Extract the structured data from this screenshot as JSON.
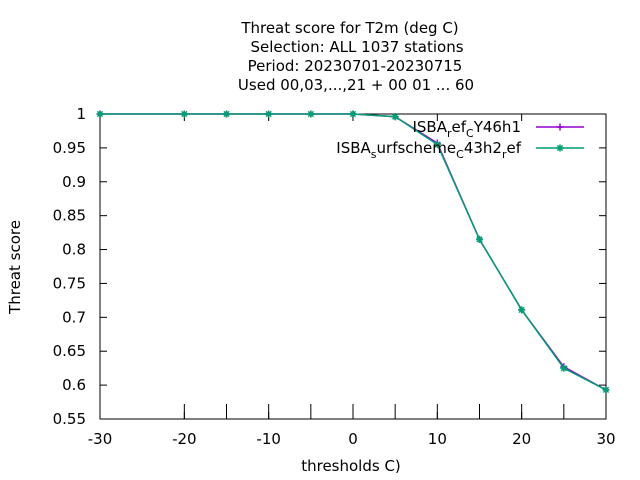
{
  "chart_data": {
    "type": "line",
    "title_lines": [
      "Threat score  for T2m (deg C)",
      "Selection: ALL   1037 stations",
      "Period: 20230701-20230715",
      "Used  00,03,...,21  + 00 01 ... 60"
    ],
    "xlabel": "thresholds C)",
    "ylabel": "Threat score",
    "xlim": [
      -30,
      30
    ],
    "ylim": [
      0.55,
      1.0
    ],
    "xticks": [
      -30,
      -20,
      -10,
      0,
      10,
      20,
      30
    ],
    "yticks": [
      0.55,
      0.6,
      0.65,
      0.7,
      0.75,
      0.8,
      0.85,
      0.9,
      0.95,
      1.0
    ],
    "ytick_labels": [
      "0.55",
      "0.6",
      "0.65",
      "0.7",
      "0.75",
      "0.8",
      "0.85",
      "0.9",
      "0.95",
      "1"
    ],
    "grid": false,
    "legend_position": "top-right",
    "x": [
      -30,
      -20,
      -15,
      -10,
      -5,
      0,
      5,
      10,
      15,
      20,
      25,
      30
    ],
    "series": [
      {
        "name_parts": [
          [
            "ISBA",
            "n"
          ],
          [
            "r",
            "sub"
          ],
          [
            "ef",
            "n"
          ],
          [
            "C",
            "sub"
          ],
          [
            "Y46h1",
            "n"
          ]
        ],
        "color": "#9400d3",
        "marker": "plus",
        "values": [
          1.0,
          1.0,
          1.0,
          1.0,
          1.0,
          1.0,
          0.996,
          0.957,
          0.815,
          0.711,
          0.627,
          0.593
        ]
      },
      {
        "name_parts": [
          [
            "ISBA",
            "n"
          ],
          [
            "s",
            "sub"
          ],
          [
            "urfscheme",
            "n"
          ],
          [
            "C",
            "sub"
          ],
          [
            "43h2",
            "n"
          ],
          [
            "r",
            "sub"
          ],
          [
            "ef",
            "n"
          ]
        ],
        "color": "#009e73",
        "marker": "star",
        "values": [
          1.0,
          1.0,
          1.0,
          1.0,
          1.0,
          1.0,
          0.996,
          0.955,
          0.815,
          0.711,
          0.625,
          0.593
        ]
      }
    ]
  }
}
